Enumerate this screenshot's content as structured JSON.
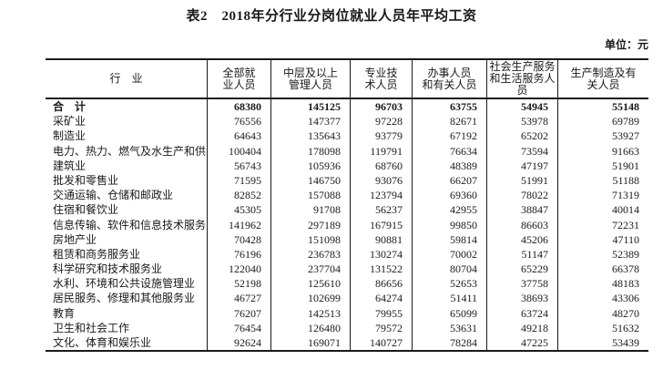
{
  "title": "表2　2018年分行业分岗位就业人员年平均工资",
  "unit_label": "单位：元",
  "table": {
    "industry_header": "行　业",
    "column_headers": [
      "全部就\n业人员",
      "中层及以上\n管理人员",
      "专业技\n术人员",
      "办事人员\n和有关人员",
      "社会生产服务\n和生活服务人\n员",
      "生产制造及有\n关人员"
    ],
    "rows": [
      {
        "industry": "合　计",
        "is_total": true,
        "values": [
          68380,
          145125,
          96703,
          63755,
          54945,
          55148
        ]
      },
      {
        "industry": "采矿业",
        "values": [
          76556,
          147377,
          97228,
          82671,
          53978,
          69789
        ]
      },
      {
        "industry": "制造业",
        "values": [
          64643,
          135643,
          93779,
          67192,
          65202,
          53927
        ]
      },
      {
        "industry": "电力、热力、燃气及水生产和供应业",
        "values": [
          100404,
          178098,
          119791,
          76634,
          73594,
          91663
        ]
      },
      {
        "industry": "建筑业",
        "values": [
          56743,
          105936,
          68760,
          48389,
          47197,
          51901
        ]
      },
      {
        "industry": "批发和零售业",
        "values": [
          71595,
          146750,
          93076,
          66207,
          51991,
          51188
        ]
      },
      {
        "industry": "交通运输、仓储和邮政业",
        "values": [
          82852,
          157088,
          123794,
          69360,
          78022,
          71319
        ]
      },
      {
        "industry": "住宿和餐饮业",
        "values": [
          45305,
          91708,
          56237,
          42955,
          38847,
          40014
        ]
      },
      {
        "industry": "信息传输、软件和信息技术服务业",
        "values": [
          141962,
          297189,
          167915,
          99850,
          86603,
          72231
        ]
      },
      {
        "industry": "房地产业",
        "values": [
          70428,
          151098,
          90881,
          59814,
          45206,
          47110
        ]
      },
      {
        "industry": "租赁和商务服务业",
        "values": [
          76196,
          236783,
          130274,
          70002,
          51147,
          52389
        ]
      },
      {
        "industry": "科学研究和技术服务业",
        "values": [
          122040,
          237704,
          131522,
          80704,
          65229,
          66378
        ]
      },
      {
        "industry": "水利、环境和公共设施管理业",
        "values": [
          52198,
          125610,
          86656,
          52653,
          37758,
          48183
        ]
      },
      {
        "industry": "居民服务、修理和其他服务业",
        "values": [
          46727,
          102699,
          64274,
          51411,
          38693,
          43306
        ]
      },
      {
        "industry": "教育",
        "values": [
          76207,
          142513,
          79955,
          65099,
          63724,
          48270
        ]
      },
      {
        "industry": "卫生和社会工作",
        "values": [
          76454,
          126480,
          79572,
          53631,
          49218,
          51632
        ]
      },
      {
        "industry": "文化、体育和娱乐业",
        "values": [
          92624,
          169071,
          140727,
          78284,
          47225,
          53439
        ]
      }
    ]
  }
}
